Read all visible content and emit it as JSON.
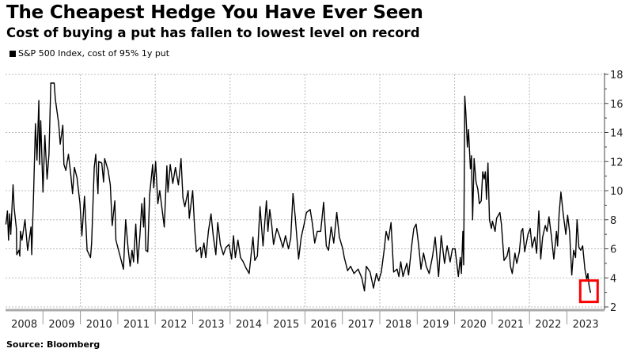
{
  "chart_data": {
    "type": "line",
    "title": "The Cheapest Hedge You Have Ever Seen",
    "subtitle": "Cost of buying a put has fallen to lowest level on record",
    "source": "Source: Bloomberg",
    "legend_position": "top-left",
    "series": [
      {
        "name": "S&P 500 Index, cost of 95% 1y put",
        "color": "#000000",
        "x": [
          2008.01,
          2008.05,
          2008.08,
          2008.11,
          2008.14,
          2008.2,
          2008.23,
          2008.29,
          2008.3,
          2008.36,
          2008.38,
          2008.4,
          2008.44,
          2008.52,
          2008.59,
          2008.68,
          2008.7,
          2008.75,
          2008.8,
          2008.84,
          2008.89,
          2008.91,
          2008.94,
          2009.0,
          2009.05,
          2009.11,
          2009.16,
          2009.21,
          2009.3,
          2009.33,
          2009.42,
          2009.46,
          2009.53,
          2009.56,
          2009.61,
          2009.68,
          2009.74,
          2009.79,
          2009.84,
          2009.91,
          2009.99,
          2010.04,
          2010.11,
          2010.18,
          2010.27,
          2010.3,
          2010.37,
          2010.41,
          2010.47,
          2010.49,
          2010.57,
          2010.62,
          2010.65,
          2010.74,
          2010.8,
          2010.85,
          2010.92,
          2010.95,
          2011.04,
          2011.09,
          2011.15,
          2011.21,
          2011.28,
          2011.33,
          2011.38,
          2011.42,
          2011.48,
          2011.53,
          2011.59,
          2011.64,
          2011.69,
          2011.71,
          2011.75,
          2011.8,
          2011.85,
          2011.93,
          2011.96,
          2012.01,
          2012.07,
          2012.12,
          2012.24,
          2012.31,
          2012.34,
          2012.4,
          2012.47,
          2012.54,
          2012.62,
          2012.69,
          2012.74,
          2012.79,
          2012.88,
          2012.91,
          2013.0,
          2013.05,
          2013.1,
          2013.21,
          2013.23,
          2013.3,
          2013.35,
          2013.42,
          2013.49,
          2013.55,
          2013.62,
          2013.67,
          2013.74,
          2013.82,
          2013.89,
          2013.97,
          2014.04,
          2014.09,
          2014.14,
          2014.21,
          2014.28,
          2014.35,
          2014.42,
          2014.51,
          2014.61,
          2014.66,
          2014.73,
          2014.8,
          2014.88,
          2014.97,
          2015.01,
          2015.06,
          2015.11,
          2015.16,
          2015.25,
          2015.32,
          2015.41,
          2015.48,
          2015.56,
          2015.62,
          2015.68,
          2015.74,
          2015.83,
          2015.9,
          2015.97,
          2016.04,
          2016.14,
          2016.2,
          2016.26,
          2016.33,
          2016.42,
          2016.5,
          2016.57,
          2016.63,
          2016.7,
          2016.77,
          2016.85,
          2016.92,
          2017.01,
          2017.05,
          2017.14,
          2017.22,
          2017.31,
          2017.42,
          2017.52,
          2017.59,
          2017.64,
          2017.74,
          2017.83,
          2017.91,
          2017.97,
          2018.04,
          2018.12,
          2018.17,
          2018.23,
          2018.3,
          2018.37,
          2018.46,
          2018.51,
          2018.56,
          2018.62,
          2018.72,
          2018.77,
          2018.86,
          2018.91,
          2018.97,
          2019.04,
          2019.1,
          2019.17,
          2019.24,
          2019.32,
          2019.41,
          2019.48,
          2019.57,
          2019.64,
          2019.73,
          2019.8,
          2019.88,
          2019.94,
          2020.01,
          2020.1,
          2020.15,
          2020.18,
          2020.22,
          2020.24,
          2020.27,
          2020.3,
          2020.34,
          2020.37,
          2020.42,
          2020.45,
          2020.48,
          2020.52,
          2020.57,
          2020.62,
          2020.66,
          2020.71,
          2020.75,
          2020.79,
          2020.82,
          2020.85,
          2020.89,
          2020.93,
          2020.98,
          2021.01,
          2021.08,
          2021.12,
          2021.21,
          2021.25,
          2021.32,
          2021.4,
          2021.45,
          2021.49,
          2021.54,
          2021.61,
          2021.66,
          2021.73,
          2021.78,
          2021.82,
          2021.87,
          2021.96,
          2022.02,
          2022.07,
          2022.14,
          2022.19,
          2022.25,
          2022.3,
          2022.35,
          2022.42,
          2022.47,
          2022.52,
          2022.58,
          2022.65,
          2022.72,
          2022.75,
          2022.79,
          2022.84,
          2022.9,
          2022.97,
          2023.02,
          2023.07,
          2023.13,
          2023.18,
          2023.23,
          2023.27,
          2023.32,
          2023.37,
          2023.42,
          2023.48,
          2023.53,
          2023.56,
          2023.59,
          2023.63
        ],
        "y": [
          7.7,
          8.6,
          6.6,
          8.4,
          7.0,
          10.4,
          8.8,
          7.4,
          5.6,
          5.9,
          5.5,
          7.2,
          6.6,
          8.0,
          5.9,
          7.5,
          5.6,
          9.9,
          14.6,
          12.1,
          16.2,
          11.8,
          14.8,
          9.9,
          13.8,
          10.8,
          12.5,
          17.4,
          17.4,
          16.3,
          14.6,
          13.2,
          14.5,
          11.8,
          11.4,
          12.5,
          11.2,
          9.8,
          11.6,
          10.9,
          9.1,
          6.9,
          9.6,
          5.9,
          5.4,
          6.4,
          11.6,
          12.5,
          9.8,
          12.0,
          11.9,
          10.6,
          12.2,
          11.4,
          10.4,
          7.6,
          9.3,
          6.6,
          5.7,
          5.2,
          4.6,
          8.0,
          5.9,
          4.8,
          5.9,
          5.1,
          7.7,
          5.0,
          6.9,
          9.1,
          7.5,
          9.5,
          5.9,
          5.8,
          9.7,
          11.8,
          10.2,
          12.0,
          9.1,
          10.0,
          7.5,
          11.7,
          9.9,
          11.8,
          10.5,
          11.6,
          10.4,
          12.2,
          9.5,
          8.9,
          10.0,
          8.1,
          10.0,
          7.5,
          5.8,
          6.1,
          5.4,
          6.4,
          5.4,
          7.2,
          8.4,
          6.9,
          5.6,
          7.8,
          6.3,
          5.6,
          6.1,
          6.3,
          5.3,
          6.9,
          5.4,
          6.6,
          5.4,
          5.1,
          4.7,
          4.3,
          6.8,
          5.2,
          5.5,
          8.9,
          6.2,
          9.3,
          7.2,
          8.7,
          7.7,
          6.3,
          7.4,
          6.9,
          6.1,
          6.9,
          6.0,
          6.7,
          9.8,
          8.2,
          5.3,
          6.8,
          7.6,
          8.5,
          8.7,
          7.7,
          6.4,
          7.2,
          7.2,
          9.2,
          6.2,
          5.9,
          7.5,
          6.4,
          8.5,
          6.8,
          6.0,
          5.4,
          4.5,
          4.8,
          4.3,
          4.6,
          4.0,
          3.1,
          4.8,
          4.4,
          3.3,
          4.3,
          3.8,
          4.4,
          6.0,
          7.2,
          6.6,
          7.8,
          4.4,
          4.6,
          4.1,
          5.1,
          4.1,
          5.0,
          4.2,
          6.4,
          7.4,
          7.7,
          6.2,
          4.6,
          5.7,
          4.8,
          4.3,
          5.5,
          6.8,
          4.1,
          6.9,
          5.0,
          6.2,
          5.1,
          6.0,
          6.0,
          4.1,
          5.4,
          4.3,
          7.2,
          4.9,
          16.5,
          15.3,
          13.0,
          14.2,
          11.5,
          12.4,
          8.0,
          12.2,
          10.6,
          10.1,
          9.1,
          9.3,
          11.3,
          10.8,
          11.3,
          9.4,
          11.9,
          8.0,
          7.4,
          7.9,
          7.2,
          8.1,
          8.5,
          7.7,
          5.2,
          5.5,
          6.1,
          4.8,
          4.3,
          5.7,
          5.0,
          5.8,
          7.2,
          7.4,
          5.8,
          7.0,
          7.4,
          6.1,
          6.8,
          5.7,
          8.6,
          5.3,
          6.8,
          7.6,
          7.2,
          8.2,
          7.0,
          5.3,
          7.2,
          6.2,
          8.4,
          9.9,
          8.4,
          7.0,
          8.3,
          7.2,
          4.2,
          5.9,
          5.4,
          8.0,
          6.1,
          5.9,
          6.2,
          4.6,
          3.9,
          4.3,
          3.5,
          3.0
        ]
      }
    ],
    "x_tick_labels": [
      "2008",
      "2009",
      "2010",
      "2011",
      "2012",
      "2013",
      "2014",
      "2015",
      "2016",
      "2017",
      "2018",
      "2019",
      "2020",
      "2021",
      "2022",
      "2023"
    ],
    "y_tick_labels": [
      "2",
      "4",
      "6",
      "8",
      "10",
      "12",
      "14",
      "16",
      "18"
    ],
    "xlim": [
      2008,
      2024
    ],
    "ylim": [
      2,
      18
    ],
    "y_axis_side": "right",
    "grid": true,
    "annotation": {
      "type": "box-around-last-point",
      "color": "#ff0000"
    }
  }
}
